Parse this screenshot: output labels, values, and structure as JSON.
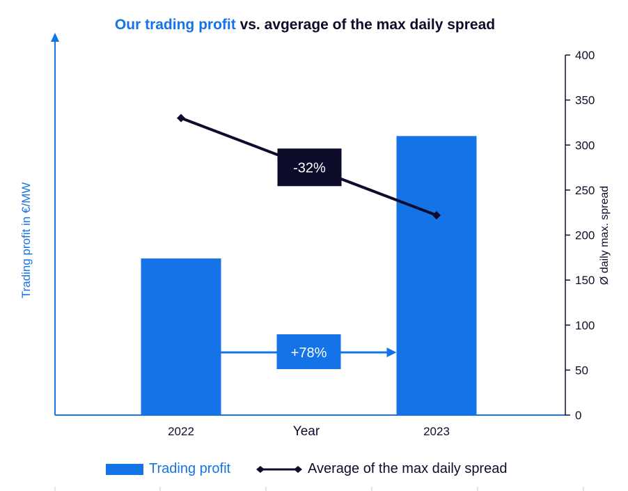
{
  "title_part1": "Our trading profit",
  "title_part2": "vs. avgerage of the max daily spread",
  "colors": {
    "bar": "#1473e6",
    "line": "#0d0d2b",
    "annotation_dark": "#0d0d2b",
    "annotation_blue": "#1473e6"
  },
  "chart_data": {
    "type": "bar",
    "categories": [
      "2022",
      "2023"
    ],
    "xlabel": "Year",
    "ylabel_left": "Trading profit in €/MW",
    "ylabel_right": "Ø daily max. spread",
    "y_right_lim": [
      0,
      400
    ],
    "y_right_ticks": [
      0,
      50,
      100,
      150,
      200,
      250,
      300,
      350,
      400
    ],
    "series": [
      {
        "name": "Trading profit",
        "type": "bar",
        "axis": "left",
        "values": [
          174,
          310
        ]
      },
      {
        "name": "Average of the max daily spread",
        "type": "line",
        "axis": "right",
        "values": [
          330,
          222
        ]
      }
    ],
    "annotations": [
      {
        "text": "-32%"
      },
      {
        "text": "+78%"
      }
    ],
    "legend_position": "bottom"
  }
}
